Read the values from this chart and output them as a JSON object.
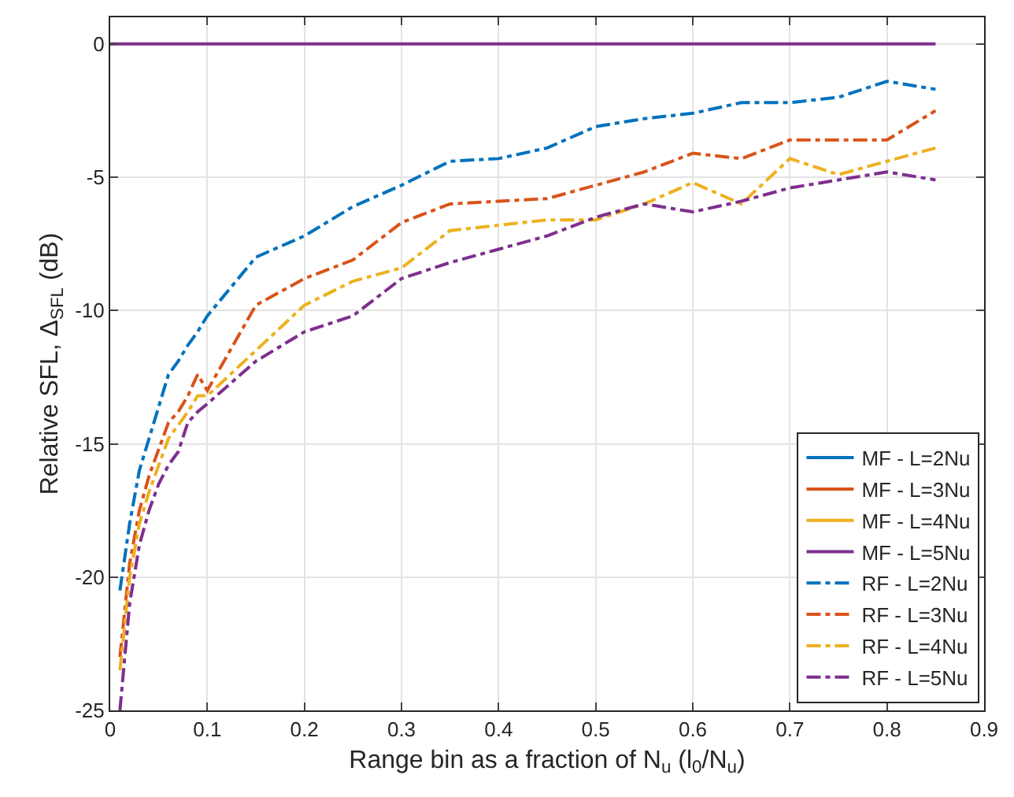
{
  "chart_data": {
    "type": "line",
    "xlabel": "Range bin as a fraction of N$_{u}$ (l$_{0}$/N$_{u}$)",
    "ylabel": "Relative SFL, Δ$_{SFL}$ (dB)",
    "xlim": [
      0,
      0.9
    ],
    "xticks": [
      0,
      0.1,
      0.2,
      0.3,
      0.4,
      0.5,
      0.6,
      0.7,
      0.8,
      0.9
    ],
    "ylim": [
      -25,
      1
    ],
    "yticks": [
      -25,
      -20,
      -15,
      -10,
      -5,
      0
    ],
    "grid": true,
    "legend": "bottom right",
    "marker": "none",
    "x": [
      0.01,
      0.02,
      0.03,
      0.04,
      0.05,
      0.06,
      0.07,
      0.08,
      0.09,
      0.1,
      0.15,
      0.2,
      0.25,
      0.3,
      0.35,
      0.4,
      0.45,
      0.5,
      0.55,
      0.6,
      0.65,
      0.7,
      0.75,
      0.8,
      0.85
    ],
    "series": [
      {
        "name": "MF - L=2Nu",
        "color": "#0072bd",
        "line_style": "solid",
        "values": [
          null,
          null,
          null,
          null,
          null,
          null,
          null,
          null,
          null,
          null,
          null,
          null,
          null,
          null,
          null,
          null,
          null,
          null,
          null,
          null,
          null,
          null,
          null,
          null,
          null
        ]
      },
      {
        "name": "MF - L=3Nu",
        "color": "#d95319",
        "line_style": "solid",
        "values": [
          null,
          null,
          null,
          null,
          null,
          null,
          null,
          null,
          null,
          null,
          null,
          null,
          null,
          null,
          null,
          null,
          null,
          null,
          null,
          null,
          null,
          null,
          null,
          null,
          null
        ]
      },
      {
        "name": "MF - L=4Nu",
        "color": "#edb120",
        "line_style": "solid",
        "values": [
          null,
          null,
          null,
          null,
          null,
          null,
          null,
          null,
          null,
          null,
          null,
          null,
          null,
          null,
          null,
          null,
          null,
          null,
          null,
          null,
          null,
          null,
          null,
          null,
          null
        ]
      },
      {
        "name": "MF - L=5Nu",
        "color": "#7e2f8e",
        "line_style": "solid",
        "x": [
          0,
          0.85
        ],
        "values": [
          0,
          0
        ]
      },
      {
        "name": "RF - L=2Nu",
        "color": "#0072bd",
        "line_style": "dashdot",
        "values": [
          -20.5,
          -18,
          -16.0,
          -14.8,
          -13.6,
          -12.4,
          -11.9,
          -11.3,
          -10.8,
          -10.2,
          -8.0,
          -7.2,
          -6.1,
          -5.3,
          -4.4,
          -4.3,
          -3.9,
          -3.1,
          -2.8,
          -2.6,
          -2.2,
          -2.2,
          -2.0,
          -1.4,
          -1.7
        ]
      },
      {
        "name": "RF - L=3Nu",
        "color": "#d95319",
        "line_style": "dashdot",
        "values": [
          -23,
          -19.5,
          -17.5,
          -16.2,
          -15.2,
          -14.2,
          -13.8,
          -13.2,
          -12.4,
          -13.0,
          -9.8,
          -8.8,
          -8.1,
          -6.7,
          -6.0,
          -5.9,
          -5.8,
          -5.3,
          -4.8,
          -4.1,
          -4.3,
          -3.6,
          -3.6,
          -3.6,
          -2.5
        ]
      },
      {
        "name": "RF - L=4Nu",
        "color": "#edb120",
        "line_style": "dashdot",
        "values": [
          -23.5,
          -20,
          -18,
          -16.8,
          -15.8,
          -14.8,
          -14.3,
          -13.8,
          -13.2,
          -13.2,
          -11.5,
          -9.8,
          -8.9,
          -8.4,
          -7.0,
          -6.8,
          -6.6,
          -6.6,
          -6.0,
          -5.2,
          -6.0,
          -4.3,
          -4.9,
          -4.4,
          -3.9
        ]
      },
      {
        "name": "RF - L=5Nu",
        "color": "#7e2f8e",
        "line_style": "dashdot",
        "values": [
          -25,
          -21,
          -18.8,
          -17.5,
          -16.5,
          -15.8,
          -15.3,
          -14.2,
          -13.8,
          -13.5,
          -11.9,
          -10.8,
          -10.2,
          -8.8,
          -8.2,
          -7.7,
          -7.2,
          -6.5,
          -6.0,
          -6.3,
          -5.9,
          -5.4,
          -5.1,
          -4.8,
          -5.1
        ]
      }
    ]
  }
}
